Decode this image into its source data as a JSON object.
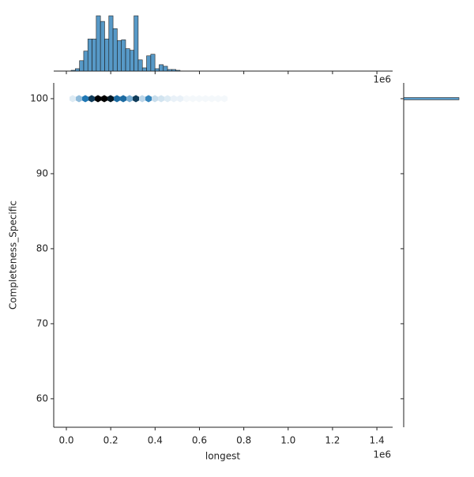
{
  "chart_data": {
    "type": "jointplot",
    "x_label": "longest",
    "y_label": "Completeness_Specific",
    "x_offset_label": "1e6",
    "color": "#1f77b4",
    "xlim": [
      -57000,
      1471000
    ],
    "ylim": [
      56.2,
      102.1
    ],
    "xticks": [
      {
        "value": 0,
        "label": "0.0"
      },
      {
        "value": 200000,
        "label": "0.2"
      },
      {
        "value": 400000,
        "label": "0.4"
      },
      {
        "value": 600000,
        "label": "0.6"
      },
      {
        "value": 800000,
        "label": "0.8"
      },
      {
        "value": 1000000,
        "label": "1.0"
      },
      {
        "value": 1200000,
        "label": "1.2"
      },
      {
        "value": 1400000,
        "label": "1.4"
      }
    ],
    "yticks": [
      60,
      70,
      80,
      90,
      100
    ],
    "hex": {
      "x": [
        28500,
        57000,
        85500,
        114000,
        142500,
        171000,
        199500,
        228000,
        256500,
        285000,
        313500,
        342000,
        370500,
        399000,
        427500,
        456000,
        484500,
        513000,
        541500,
        570000,
        598500,
        627000,
        655500,
        684000,
        712500
      ],
      "y": [
        100,
        100,
        100,
        100,
        100,
        100,
        100,
        100,
        100,
        100,
        100,
        100,
        100,
        100,
        100,
        100,
        100,
        100,
        100,
        100,
        100,
        100,
        100,
        100,
        100
      ],
      "counts": [
        3,
        10,
        20,
        30,
        40,
        40,
        36,
        22,
        22,
        12,
        30,
        6,
        18,
        5,
        4,
        3,
        2,
        2,
        1,
        1,
        1,
        1,
        1,
        1,
        1
      ]
    },
    "x_hist": {
      "bins": [
        21400,
        40300,
        59200,
        78100,
        97000,
        115900,
        134800,
        153700,
        172600,
        191500,
        210400,
        229300,
        248200,
        267100,
        286000,
        304900,
        323800,
        342700,
        361600,
        380500,
        399400,
        418300,
        437200,
        456100,
        475000,
        493900,
        512800
      ],
      "counts": [
        1,
        3,
        13,
        25,
        40,
        40,
        69,
        62,
        40,
        69,
        53,
        38,
        39,
        28,
        26,
        69,
        14,
        4,
        19,
        21,
        3,
        8,
        6,
        2,
        2,
        1
      ]
    },
    "y_hist": {
      "bins": [
        99.85,
        100.15
      ],
      "counts": [
        1
      ]
    }
  }
}
